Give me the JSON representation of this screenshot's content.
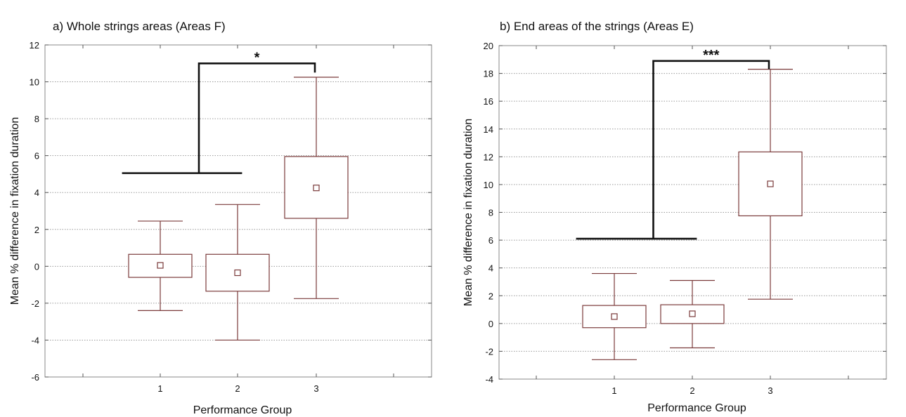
{
  "chart_data": [
    {
      "type": "box",
      "title": "a) Whole strings areas (Areas F)",
      "xlabel": "Performance Group",
      "ylabel": "Mean % difference in fixation duration",
      "categories": [
        "1",
        "2",
        "3"
      ],
      "ylim": [
        -6,
        12
      ],
      "yticks": [
        -6,
        -4,
        -2,
        0,
        2,
        4,
        6,
        8,
        10,
        12
      ],
      "grid": true,
      "boxes": [
        {
          "category": "1",
          "mean": 0.05,
          "box_low": -0.6,
          "box_high": 0.65,
          "whisker_low": -2.4,
          "whisker_high": 2.45
        },
        {
          "category": "2",
          "mean": -0.35,
          "box_low": -1.35,
          "box_high": 0.65,
          "whisker_low": -4.0,
          "whisker_high": 3.35
        },
        {
          "category": "3",
          "mean": 4.25,
          "box_low": 2.6,
          "box_high": 5.95,
          "whisker_low": -1.75,
          "whisker_high": 10.25
        }
      ],
      "significance": {
        "label": "*",
        "from": [
          "1",
          "2"
        ],
        "to": "3",
        "y_low": 5.05,
        "y_high": 11.0,
        "y_end": 10.5
      }
    },
    {
      "type": "box",
      "title": "b) End areas of the strings (Areas E)",
      "xlabel": "Performance Group",
      "ylabel": "Mean % difference in fixation duration",
      "categories": [
        "1",
        "2",
        "3"
      ],
      "ylim": [
        -4,
        20
      ],
      "yticks": [
        -4,
        -2,
        0,
        2,
        4,
        6,
        8,
        10,
        12,
        14,
        16,
        18,
        20
      ],
      "grid": true,
      "boxes": [
        {
          "category": "1",
          "mean": 0.5,
          "box_low": -0.3,
          "box_high": 1.3,
          "whisker_low": -2.6,
          "whisker_high": 3.6
        },
        {
          "category": "2",
          "mean": 0.7,
          "box_low": 0.0,
          "box_high": 1.35,
          "whisker_low": -1.75,
          "whisker_high": 3.1
        },
        {
          "category": "3",
          "mean": 10.05,
          "box_low": 7.75,
          "box_high": 12.35,
          "whisker_low": 1.75,
          "whisker_high": 18.3
        }
      ],
      "significance": {
        "label": "***",
        "from": [
          "1",
          "2"
        ],
        "to": "3",
        "y_low": 6.1,
        "y_high": 18.9,
        "y_end": 18.3
      }
    }
  ]
}
